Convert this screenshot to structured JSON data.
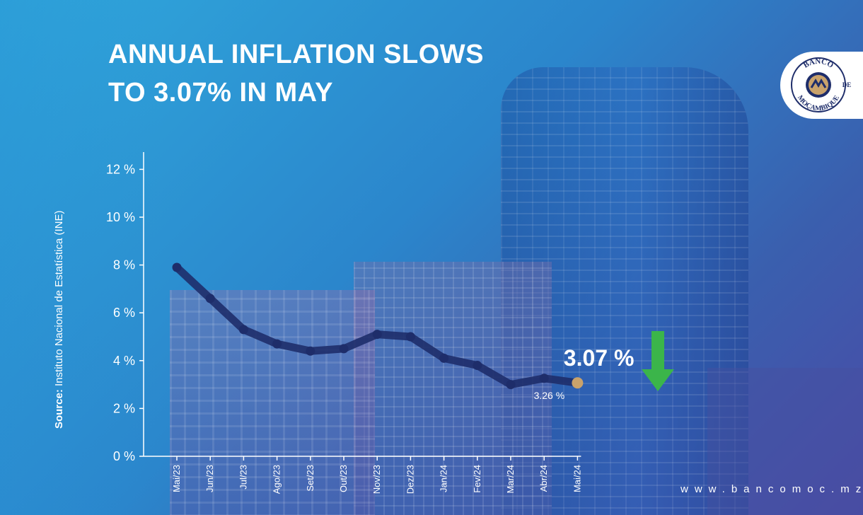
{
  "header": {
    "title_line1": "ANNUAL INFLATION SLOWS",
    "title_line2": "TO 3.07% IN MAY"
  },
  "source": {
    "label": "Source:",
    "text": "Instituto Nacional de Estatística (INE)"
  },
  "logo": {
    "top_text": "BANCO",
    "mid_text": "DE",
    "bottom_text": "MOÇAMBIQUE"
  },
  "footer": {
    "website": "www.bancomoc.mz"
  },
  "colors": {
    "line": "#1e2d6a",
    "last_point": "#c9a26b",
    "arrow": "#3bb54a",
    "text": "#ffffff"
  },
  "icons": {
    "down_arrow": "arrow-down-icon"
  },
  "chart_data": {
    "type": "line",
    "categories": [
      "Mai/23",
      "Jun/23",
      "Jul/23",
      "Ago/23",
      "Set/23",
      "Out/23",
      "Nov/23",
      "Dez/23",
      "Jan/24",
      "Fev/24",
      "Mar/24",
      "Abr/24",
      "Mai/24"
    ],
    "values": [
      7.9,
      6.6,
      5.3,
      4.7,
      4.4,
      4.5,
      5.1,
      5.0,
      4.1,
      3.8,
      3.0,
      3.26,
      3.07
    ],
    "yticks": [
      0,
      2,
      4,
      6,
      8,
      10,
      12
    ],
    "ytick_labels": [
      "0 %",
      "2 %",
      "4 %",
      "6 %",
      "8 %",
      "10 %",
      "12 %"
    ],
    "ylim": [
      0,
      13
    ],
    "title": "",
    "xlabel": "",
    "ylabel": "",
    "grid": false,
    "annotations": [
      {
        "label": "3.07 %",
        "point_index": 12,
        "style": "large"
      },
      {
        "label": "3.26 %",
        "point_index": 11,
        "style": "small"
      }
    ]
  }
}
